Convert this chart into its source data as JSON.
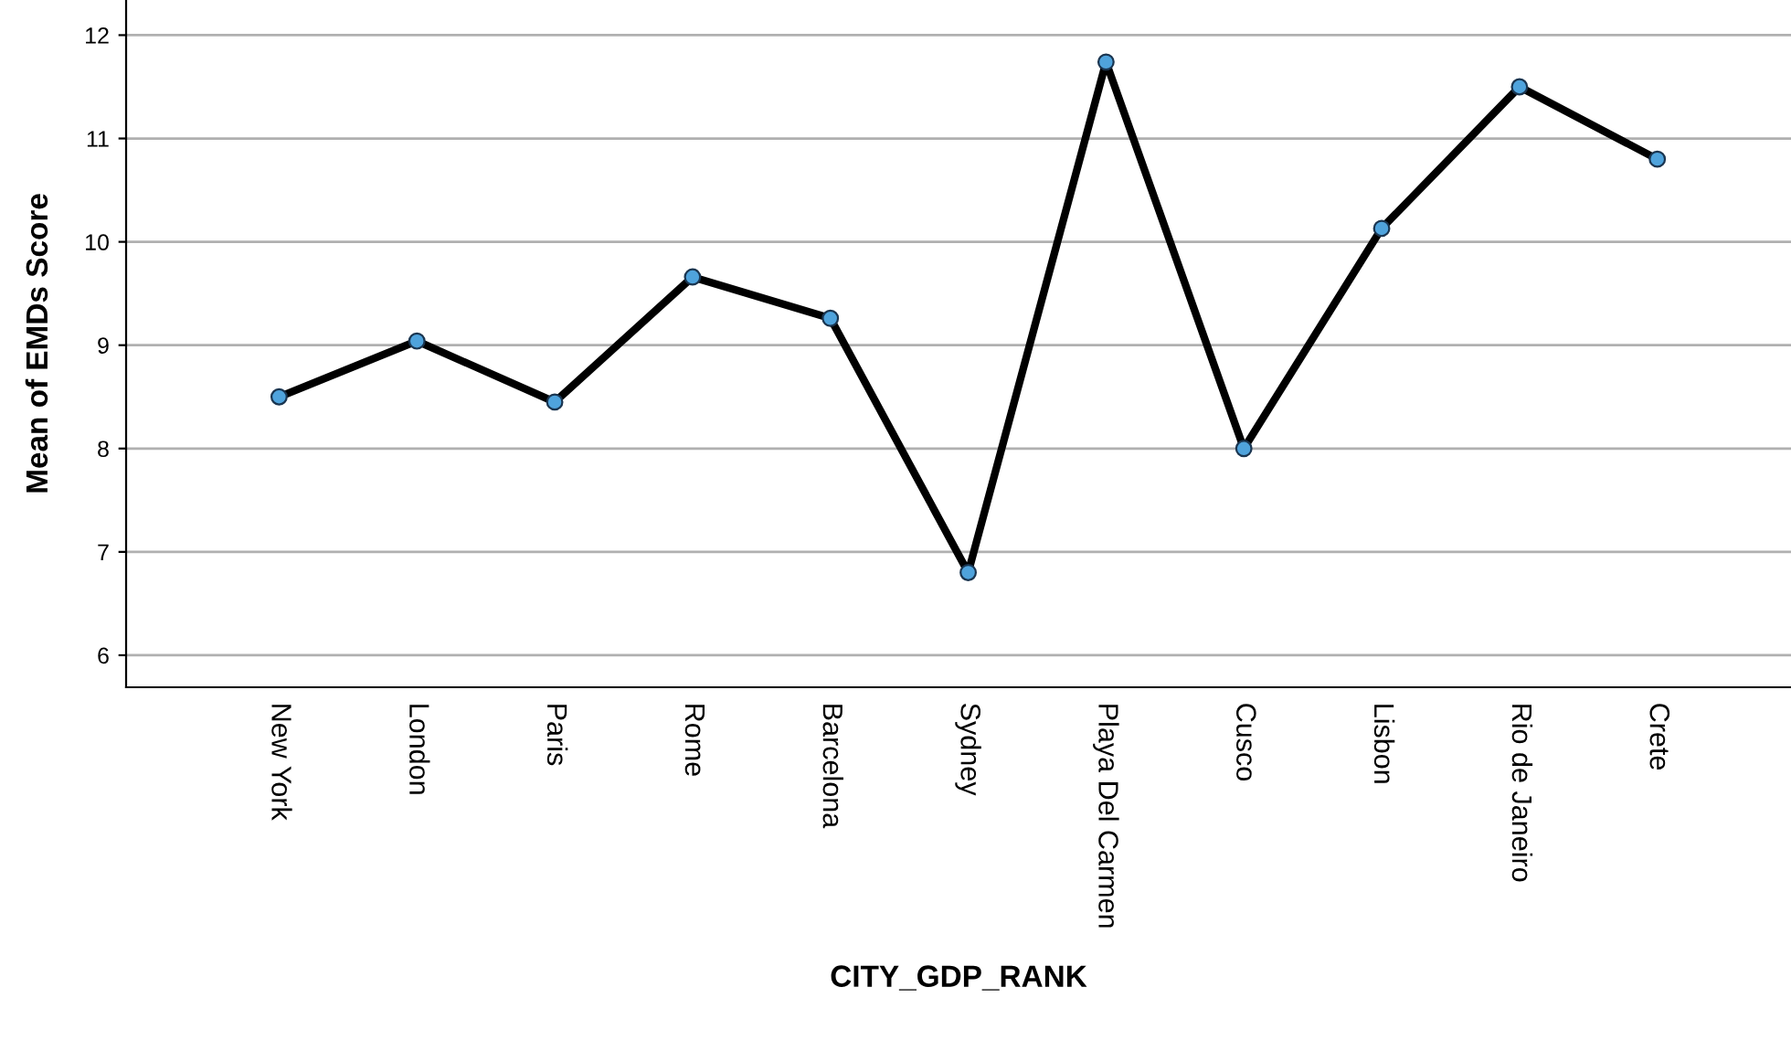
{
  "chart_data": {
    "type": "line",
    "xlabel": "CITY_GDP_RANK",
    "ylabel": "Mean of EMDs Score",
    "categories": [
      "New York",
      "London",
      "Paris",
      "Rome",
      "Barcelona",
      "Sydney",
      "Playa Del Carmen",
      "Cusco",
      "Lisbon",
      "Rio de Janeiro",
      "Crete"
    ],
    "series": [
      {
        "color": "#000000",
        "values": [
          8.5,
          9.04,
          8.45,
          9.66,
          9.26,
          6.8,
          11.74,
          8.0,
          10.13,
          11.5,
          10.8
        ]
      }
    ],
    "ylim": [
      5.69,
      12.34
    ],
    "yticks": [
      6,
      7,
      8,
      9,
      10,
      11,
      12
    ],
    "grid": "y",
    "marker": "circle",
    "line_style": "solid",
    "legend": false
  }
}
